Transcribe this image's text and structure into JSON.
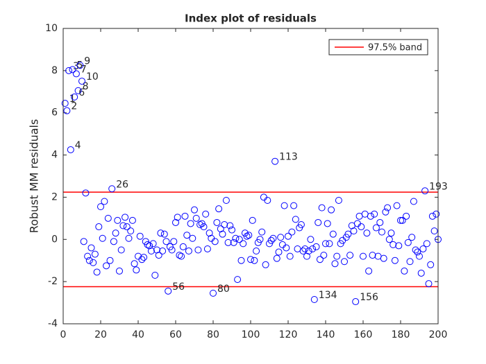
{
  "chart_data": {
    "type": "scatter",
    "title": "Index plot of residuals",
    "ylabel": "Robust MM residuals",
    "xlim": [
      0,
      200
    ],
    "ylim": [
      -4,
      10
    ],
    "xticks": [
      0,
      20,
      40,
      60,
      80,
      100,
      120,
      140,
      160,
      180,
      200
    ],
    "yticks": [
      -4,
      -2,
      0,
      2,
      4,
      6,
      8,
      10
    ],
    "marker_color": "#0000ff",
    "x": [
      1,
      2,
      3,
      4,
      5,
      6,
      7,
      8,
      9,
      10,
      11,
      12,
      13,
      14,
      15,
      16,
      17,
      18,
      19,
      20,
      21,
      22,
      23,
      24,
      25,
      26,
      27,
      28,
      29,
      30,
      31,
      32,
      33,
      34,
      35,
      36,
      37,
      38,
      39,
      40,
      41,
      42,
      43,
      44,
      45,
      46,
      47,
      48,
      49,
      50,
      51,
      52,
      53,
      54,
      55,
      56,
      57,
      58,
      59,
      60,
      61,
      62,
      63,
      64,
      65,
      66,
      67,
      68,
      69,
      70,
      71,
      72,
      73,
      74,
      75,
      76,
      77,
      78,
      79,
      80,
      81,
      82,
      83,
      84,
      85,
      86,
      87,
      88,
      89,
      90,
      91,
      92,
      93,
      94,
      95,
      96,
      97,
      98,
      99,
      100,
      101,
      102,
      103,
      104,
      105,
      106,
      107,
      108,
      109,
      110,
      111,
      112,
      113,
      114,
      115,
      116,
      117,
      118,
      119,
      120,
      121,
      122,
      123,
      124,
      125,
      126,
      127,
      128,
      129,
      130,
      131,
      132,
      133,
      134,
      135,
      136,
      137,
      138,
      139,
      140,
      141,
      142,
      143,
      144,
      145,
      146,
      147,
      148,
      149,
      150,
      151,
      152,
      153,
      154,
      155,
      156,
      157,
      158,
      159,
      160,
      161,
      162,
      163,
      164,
      165,
      166,
      167,
      168,
      169,
      170,
      171,
      172,
      173,
      174,
      175,
      176,
      177,
      178,
      179,
      180,
      181,
      182,
      183,
      184,
      185,
      186,
      187,
      188,
      189,
      190,
      191,
      192,
      193,
      194,
      195,
      196,
      197,
      198,
      199,
      200
    ],
    "values": [
      6.45,
      6.1,
      8.0,
      4.25,
      8.05,
      6.75,
      7.85,
      7.05,
      8.25,
      7.5,
      -0.1,
      2.2,
      -0.8,
      -1.0,
      -0.4,
      -1.1,
      -0.7,
      -1.55,
      0.6,
      1.55,
      0.05,
      1.8,
      -1.25,
      1.0,
      -1.0,
      2.4,
      -0.1,
      0.3,
      0.9,
      -1.5,
      -0.5,
      0.65,
      1.05,
      0.6,
      0.05,
      0.4,
      0.9,
      -1.15,
      -1.45,
      -0.8,
      0.15,
      -0.95,
      -0.85,
      -0.1,
      -0.25,
      -0.3,
      -0.55,
      -0.2,
      -1.7,
      -0.5,
      -0.75,
      0.3,
      -0.55,
      0.25,
      -0.1,
      -2.45,
      -0.35,
      -0.5,
      -0.1,
      0.8,
      1.05,
      -0.75,
      -0.8,
      -0.35,
      1.1,
      0.2,
      -0.55,
      0.75,
      0.05,
      1.4,
      1.0,
      -0.5,
      0.7,
      0.75,
      0.6,
      1.2,
      -0.45,
      0.3,
      0.05,
      -2.55,
      -0.1,
      0.8,
      1.45,
      0.5,
      0.25,
      0.7,
      1.85,
      -0.15,
      0.65,
      0.45,
      -0.15,
      0.05,
      -1.9,
      0.0,
      -1.0,
      -0.2,
      0.3,
      0.15,
      0.2,
      -0.95,
      0.9,
      -1.0,
      -0.55,
      -0.15,
      0.0,
      0.35,
      2.0,
      -1.2,
      1.85,
      -0.2,
      -0.05,
      0.05,
      3.7,
      -0.9,
      -0.6,
      0.1,
      -0.25,
      1.6,
      -0.4,
      0.15,
      -0.8,
      0.35,
      1.6,
      0.95,
      -0.45,
      0.55,
      0.7,
      -0.55,
      -0.45,
      -0.8,
      -0.55,
      0.0,
      -0.45,
      -2.85,
      -0.35,
      0.8,
      -0.95,
      1.5,
      -0.75,
      -0.2,
      0.75,
      -0.2,
      1.4,
      0.25,
      -1.15,
      -0.8,
      1.85,
      -0.2,
      -0.05,
      -1.05,
      0.1,
      0.25,
      -0.75,
      0.65,
      0.4,
      -2.95,
      0.75,
      1.1,
      0.6,
      -0.8,
      1.2,
      0.3,
      -1.5,
      1.1,
      -0.75,
      1.2,
      0.55,
      -0.8,
      0.8,
      0.35,
      -0.9,
      1.3,
      1.5,
      0.0,
      0.3,
      -0.25,
      -1.0,
      1.6,
      -0.3,
      0.9,
      0.9,
      -1.5,
      1.1,
      -0.15,
      -1.05,
      0.1,
      1.8,
      -0.5,
      -0.6,
      -0.8,
      -1.6,
      -0.45,
      2.3,
      -0.2,
      -2.1,
      -1.2,
      1.1,
      0.4,
      1.2,
      0.0
    ],
    "point_labels": [
      "1",
      "2",
      "3",
      "4",
      "5",
      "6",
      "7",
      "8",
      "9",
      "10",
      null,
      null,
      null,
      null,
      null,
      null,
      null,
      null,
      null,
      null,
      null,
      null,
      null,
      null,
      null,
      "26",
      null,
      null,
      null,
      null,
      null,
      null,
      null,
      null,
      null,
      null,
      null,
      null,
      null,
      null,
      null,
      null,
      null,
      null,
      null,
      null,
      null,
      null,
      null,
      null,
      null,
      null,
      null,
      null,
      null,
      "56",
      null,
      null,
      null,
      null,
      null,
      null,
      null,
      null,
      null,
      null,
      null,
      null,
      null,
      null,
      null,
      null,
      null,
      null,
      null,
      null,
      null,
      null,
      null,
      "80",
      null,
      null,
      null,
      null,
      null,
      null,
      null,
      null,
      null,
      null,
      null,
      null,
      null,
      null,
      null,
      null,
      null,
      null,
      null,
      null,
      null,
      null,
      null,
      null,
      null,
      null,
      null,
      null,
      null,
      null,
      null,
      null,
      "113",
      null,
      null,
      null,
      null,
      null,
      null,
      null,
      null,
      null,
      null,
      null,
      null,
      null,
      null,
      null,
      null,
      null,
      null,
      null,
      null,
      "134",
      null,
      null,
      null,
      null,
      null,
      null,
      null,
      null,
      null,
      null,
      null,
      null,
      null,
      null,
      null,
      null,
      null,
      null,
      null,
      null,
      null,
      "156",
      null,
      null,
      null,
      null,
      null,
      null,
      null,
      null,
      null,
      null,
      null,
      null,
      null,
      null,
      null,
      null,
      null,
      null,
      null,
      null,
      null,
      null,
      null,
      null,
      null,
      null,
      null,
      null,
      null,
      null,
      null,
      null,
      null,
      null,
      null,
      null,
      "193",
      null,
      null,
      null,
      null,
      null,
      null,
      null
    ],
    "band": {
      "name": "97.5% band",
      "color": "#ff0000",
      "values": [
        2.24,
        -2.24
      ]
    },
    "legend_position": "top-right"
  }
}
